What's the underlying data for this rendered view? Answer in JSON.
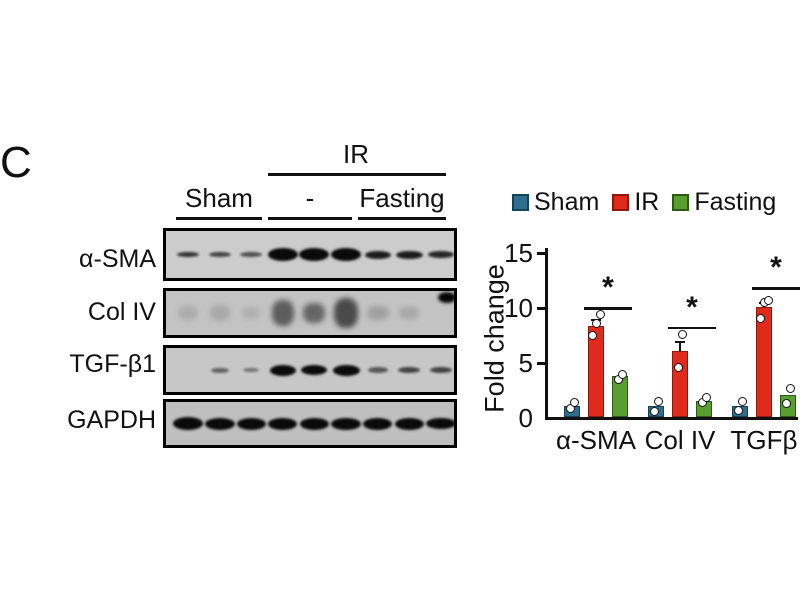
{
  "panel_label": "C",
  "colors": {
    "sham": "#2E6E8E",
    "sham_border": "#16425A",
    "ir": "#E02A1C",
    "ir_border": "#8F170D",
    "fasting": "#57A02F",
    "fasting_border": "#2C5916"
  },
  "blot": {
    "header": {
      "ir": "IR",
      "sham": "Sham",
      "minus": "-",
      "fasting": "Fasting"
    },
    "rows": [
      {
        "label": "α-SMA",
        "bg": "#cccccc",
        "bands": [
          [
            22,
            5,
            0.8
          ],
          [
            22,
            5,
            0.7
          ],
          [
            22,
            5,
            0.65
          ],
          [
            30,
            13,
            1
          ],
          [
            30,
            13,
            1
          ],
          [
            30,
            13,
            1
          ],
          [
            26,
            8,
            0.9
          ],
          [
            27,
            8,
            0.9
          ],
          [
            26,
            7,
            0.85
          ]
        ]
      },
      {
        "label": "Col IV",
        "bg": "#c3c3c3",
        "bands": [
          [
            20,
            14,
            0.12
          ],
          [
            20,
            16,
            0.14
          ],
          [
            18,
            12,
            0.1
          ],
          [
            22,
            26,
            0.55
          ],
          [
            22,
            20,
            0.5
          ],
          [
            24,
            30,
            0.65
          ],
          [
            22,
            14,
            0.18
          ],
          [
            20,
            12,
            0.15
          ],
          [
            0,
            0,
            0
          ]
        ],
        "spot": {
          "x": 272,
          "y": 1,
          "w": 18,
          "h": 11
        }
      },
      {
        "label": "TGF-β1",
        "bg": "#c7c7c7",
        "bands": [
          [
            0,
            0,
            0
          ],
          [
            18,
            5,
            0.55
          ],
          [
            16,
            4,
            0.45
          ],
          [
            26,
            11,
            1
          ],
          [
            26,
            10,
            1
          ],
          [
            27,
            11,
            1
          ],
          [
            20,
            6,
            0.6
          ],
          [
            22,
            6,
            0.7
          ],
          [
            22,
            6,
            0.7
          ]
        ]
      },
      {
        "label": "GAPDH",
        "bg": "#bfbfbf",
        "bands": [
          [
            30,
            13,
            1
          ],
          [
            30,
            12,
            1
          ],
          [
            29,
            12,
            1
          ],
          [
            29,
            12,
            1
          ],
          [
            29,
            12,
            1
          ],
          [
            30,
            12,
            1
          ],
          [
            29,
            12,
            1
          ],
          [
            29,
            12,
            1
          ],
          [
            30,
            11,
            1
          ]
        ]
      }
    ]
  },
  "chart_data": {
    "type": "bar",
    "title": "",
    "ylabel": "Fold change",
    "ylim": [
      0,
      15
    ],
    "yticks": [
      0,
      5,
      10,
      15
    ],
    "grid": false,
    "legend_position": "top",
    "categories": [
      "α-SMA",
      "Col IV",
      "TGFβ"
    ],
    "series": [
      {
        "name": "Sham",
        "color_key": "sham",
        "values": [
          1.0,
          1.0,
          1.0
        ],
        "points": [
          [
            0.8,
            1.3
          ],
          [
            0.5,
            1.4
          ],
          [
            0.6,
            1.4
          ]
        ]
      },
      {
        "name": "IR",
        "color_key": "ir",
        "values": [
          8.3,
          6.0,
          10.0
        ],
        "errors": [
          0.5,
          0.8,
          0.4
        ],
        "points": [
          [
            7.4,
            8.5,
            9.3
          ],
          [
            4.5,
            7.5
          ],
          [
            9.0,
            10.4,
            10.6
          ]
        ]
      },
      {
        "name": "Fasting",
        "color_key": "fasting",
        "values": [
          3.7,
          1.5,
          2.0
        ],
        "points": [
          [
            3.4,
            3.9
          ],
          [
            1.3,
            1.8
          ],
          [
            1.2,
            2.6
          ]
        ]
      }
    ],
    "significance": [
      {
        "category": "α-SMA",
        "between": [
          "IR",
          "Fasting"
        ],
        "label": "*",
        "y": 10.0
      },
      {
        "category": "Col IV",
        "between": [
          "IR",
          "Fasting"
        ],
        "label": "*",
        "y": 8.2
      },
      {
        "category": "TGFβ",
        "between": [
          "IR",
          "Fasting"
        ],
        "label": "*",
        "y": 11.8
      }
    ]
  }
}
